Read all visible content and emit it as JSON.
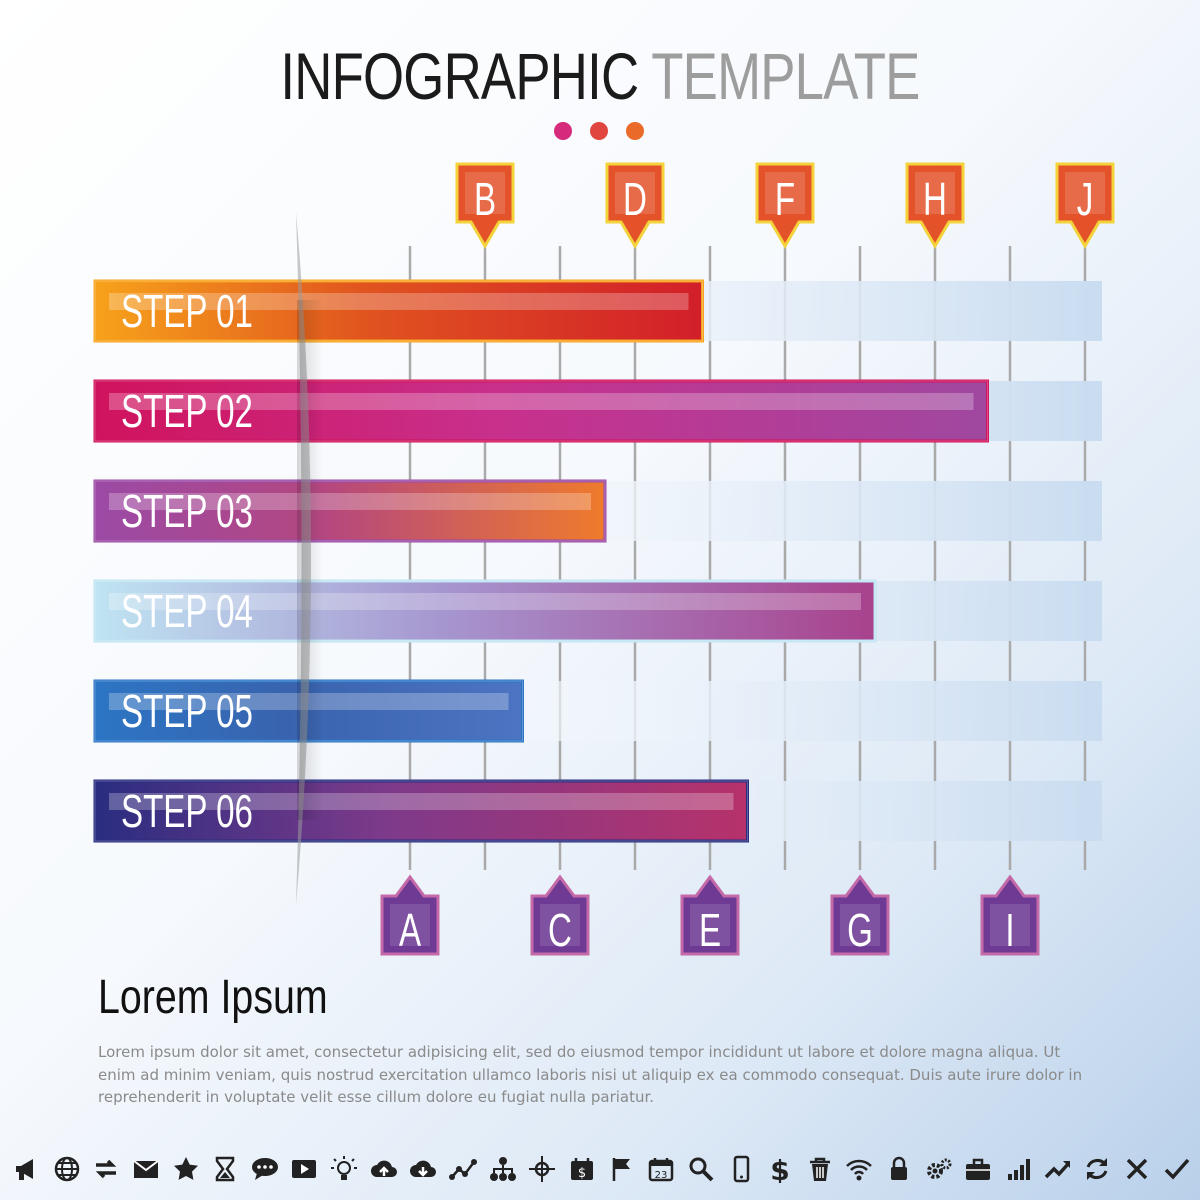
{
  "header": {
    "title_dark": "INFOGRAPHIC",
    "title_light": "TEMPLATE",
    "dots": [
      "#d62a7d",
      "#e0463f",
      "#ea6a2a"
    ]
  },
  "chart_data": {
    "type": "bar",
    "orientation": "horizontal",
    "title": "",
    "xlabel": "",
    "ylabel": "",
    "categories": [
      "STEP 01",
      "STEP 02",
      "STEP 03",
      "STEP 04",
      "STEP 05",
      "STEP 06"
    ],
    "values": [
      3.9,
      7.7,
      2.6,
      6.2,
      1.5,
      4.5
    ],
    "xlim": [
      0,
      9
    ],
    "tick_labels": [
      "A",
      "B",
      "C",
      "D",
      "E",
      "F",
      "G",
      "H",
      "I",
      "J"
    ],
    "tick_labels_bottom": [
      "A",
      "C",
      "E",
      "G",
      "I"
    ],
    "tick_labels_top": [
      "B",
      "D",
      "F",
      "H",
      "J"
    ],
    "grid": true,
    "legend": "none",
    "bar_colors": [
      [
        "#f7a21b",
        "#e0531f",
        "#d21f2a"
      ],
      [
        "#d0135d",
        "#c8308c",
        "#9f48a0"
      ],
      [
        "#9b4aa6",
        "#b4477f",
        "#ef7b2c"
      ],
      [
        "#bfe4f2",
        "#a695cf",
        "#a8428d"
      ],
      [
        "#2c75c4",
        "#3963ae",
        "#4d74c2"
      ],
      [
        "#2a2d80",
        "#7e3a8a",
        "#b6326b"
      ]
    ],
    "marker_colors": {
      "top": "#e4522a",
      "bottom": "#6e3a94"
    }
  },
  "content": {
    "heading": "Lorem Ipsum",
    "paragraph": "Lorem ipsum dolor sit amet, consectetur adipisicing elit, sed do eiusmod tempor incididunt ut labore et dolore magna aliqua. Ut enim ad minim veniam, quis nostrud exercitation ullamco laboris nisi ut aliquip ex ea commodo consequat.  Duis aute irure dolor in reprehenderit in voluptate velit esse cillum dolore eu fugiat nulla pariatur."
  },
  "icon_bar": {
    "icons": [
      "megaphone-icon",
      "globe-icon",
      "transfer-arrows-icon",
      "envelope-icon",
      "star-icon",
      "hourglass-icon",
      "chat-bubble-icon",
      "video-player-icon",
      "lightbulb-icon",
      "cloud-upload-icon",
      "cloud-download-icon",
      "line-graph-icon",
      "org-chart-icon",
      "crosshair-icon",
      "money-calendar-icon",
      "flag-icon",
      "calendar-icon",
      "magnifier-icon",
      "smartphone-icon",
      "dollar-icon",
      "trash-icon",
      "wifi-icon",
      "padlock-icon",
      "gears-icon",
      "briefcase-icon",
      "bar-chart-icon",
      "trend-up-icon",
      "refresh-icon",
      "close-icon",
      "checkmark-icon"
    ],
    "calendar_number": "23",
    "dollar_symbol": "$"
  }
}
